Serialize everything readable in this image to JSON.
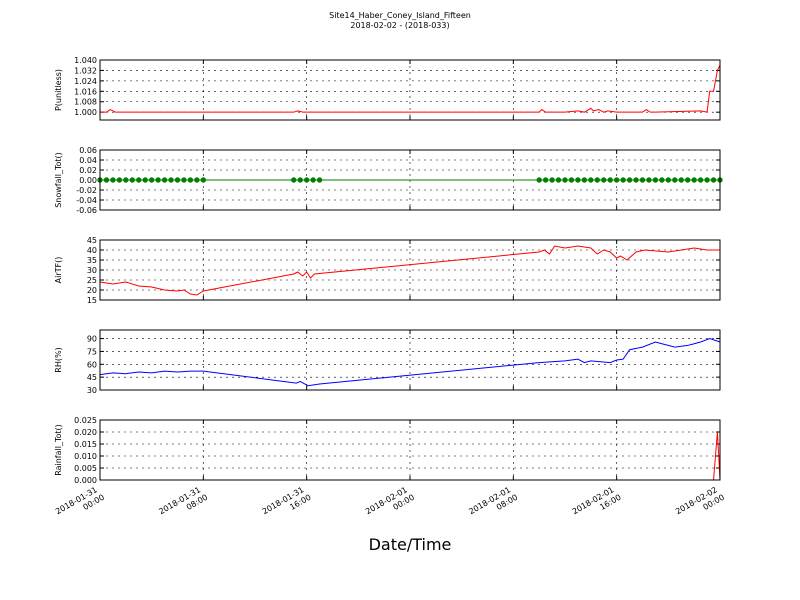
{
  "chart_data": [
    {
      "type": "line",
      "title": "Site14_Haber_Coney_Island_Fifteen",
      "subtitle": "2018-02-02 - (2018-033)",
      "ylabel": "P(unitless)",
      "color": "#ff0000",
      "grid": true,
      "xlim": [
        0,
        48
      ],
      "x": [
        0,
        0.5,
        0.8,
        1.2,
        15,
        15.3,
        15.7,
        16,
        34,
        34.2,
        34.5,
        36,
        37,
        37.5,
        38,
        38.2,
        38.6,
        39,
        39.3,
        40,
        42,
        42.3,
        42.6,
        43,
        46.5,
        47,
        47.2,
        47.5,
        47.8,
        48
      ],
      "values": [
        1.0,
        1.0,
        1.002,
        1.0,
        1.0,
        1.001,
        1.0,
        1.0,
        1.0,
        1.002,
        1.0,
        1.0,
        1.001,
        1.0,
        1.003,
        1.001,
        1.002,
        1.0,
        1.001,
        1.0,
        1.0,
        1.002,
        1.0,
        1.0,
        1.001,
        1.0,
        1.016,
        1.016,
        1.032,
        1.036
      ],
      "ylim": [
        0.994,
        1.04
      ],
      "yticks": [
        {
          "value": 1.0,
          "label": "1.000"
        },
        {
          "value": 1.008,
          "label": "1.008"
        },
        {
          "value": 1.016,
          "label": "1.016"
        },
        {
          "value": 1.024,
          "label": "1.024"
        },
        {
          "value": 1.032,
          "label": "1.032"
        },
        {
          "value": 1.04,
          "label": "1.040"
        }
      ]
    },
    {
      "type": "line",
      "ylabel": "Snowfall_Tot()",
      "color": "#008000",
      "marker": true,
      "grid": true,
      "xlim": [
        0,
        48
      ],
      "x": [
        0,
        0.5,
        1,
        1.5,
        2,
        2.5,
        3,
        3.5,
        4,
        4.5,
        5,
        5.5,
        6,
        6.5,
        7,
        7.5,
        8,
        15,
        15.5,
        16,
        16.5,
        17,
        34,
        34.5,
        35,
        35.5,
        36,
        36.5,
        37,
        37.5,
        38,
        38.5,
        39,
        39.5,
        40,
        40.5,
        41,
        41.5,
        42,
        42.5,
        43,
        43.5,
        44,
        44.5,
        45,
        45.5,
        46,
        46.5,
        47,
        47.5,
        48
      ],
      "values": [
        0,
        0,
        0,
        0,
        0,
        0,
        0,
        0,
        0,
        0,
        0,
        0,
        0,
        0,
        0,
        0,
        0,
        0,
        0,
        0,
        0,
        0,
        0,
        0,
        0,
        0,
        0,
        0,
        0,
        0,
        0,
        0,
        0,
        0,
        0,
        0,
        0,
        0,
        0,
        0,
        0,
        0,
        0,
        0,
        0,
        0,
        0,
        0,
        0,
        0,
        0
      ],
      "ylim": [
        -0.06,
        0.06
      ],
      "yticks": [
        {
          "value": -0.06,
          "label": "-0.06"
        },
        {
          "value": -0.04,
          "label": "-0.04"
        },
        {
          "value": -0.02,
          "label": "-0.02"
        },
        {
          "value": 0,
          "label": "0.00"
        },
        {
          "value": 0.02,
          "label": "0.02"
        },
        {
          "value": 0.04,
          "label": "0.04"
        },
        {
          "value": 0.06,
          "label": "0.06"
        }
      ]
    },
    {
      "type": "line",
      "ylabel": "AirTF()",
      "color": "#ff0000",
      "grid": true,
      "xlim": [
        0,
        48
      ],
      "x": [
        0,
        1,
        2,
        3,
        4,
        5,
        6,
        6.5,
        7,
        7.5,
        8,
        15,
        15.3,
        15.7,
        16,
        16.3,
        16.6,
        34,
        34.4,
        34.8,
        35.2,
        36,
        37,
        38,
        38.5,
        39,
        39.5,
        40,
        40.3,
        40.8,
        41.5,
        42.2,
        44,
        46,
        47,
        48
      ],
      "values": [
        24,
        23,
        24,
        22,
        21.5,
        20,
        19.5,
        20,
        18,
        17.5,
        19.5,
        28,
        29,
        27,
        29,
        26,
        28,
        39,
        40,
        38,
        42,
        41,
        42,
        41,
        38,
        40,
        39,
        36,
        37,
        35,
        39,
        40,
        39,
        41,
        40,
        40
      ],
      "ylim": [
        15,
        45
      ],
      "yticks": [
        15,
        20,
        25,
        30,
        35,
        40,
        45
      ]
    },
    {
      "type": "line",
      "ylabel": "RH(%)",
      "color": "#0000ff",
      "grid": true,
      "xlim": [
        0,
        48
      ],
      "x": [
        0,
        1,
        2,
        3,
        4,
        5,
        6,
        7,
        8,
        15.2,
        15.5,
        16.1,
        17,
        34,
        35,
        36,
        37,
        37.5,
        38,
        39.5,
        40,
        40.5,
        41,
        42,
        43,
        43.5,
        44.5,
        45.5,
        46,
        46.5,
        47.2,
        48
      ],
      "values": [
        48,
        50,
        49,
        51,
        50,
        52,
        51,
        52,
        52,
        38,
        40,
        35,
        37,
        62,
        63,
        64,
        66,
        62,
        64,
        62,
        65,
        66,
        77,
        80,
        86,
        84,
        80,
        82,
        84,
        86,
        90,
        86
      ],
      "ylim": [
        30,
        100
      ],
      "yticks": [
        30,
        45,
        60,
        75,
        90
      ]
    },
    {
      "type": "line",
      "ylabel": "Rainfall_Tot()",
      "xlabel": "Date/Time",
      "color": "#ff0000",
      "grid": true,
      "xlim": [
        0,
        48
      ],
      "x": [
        0,
        8,
        16,
        24,
        32,
        40,
        47.5,
        47.8,
        48
      ],
      "values": [
        0,
        0,
        0,
        0,
        0,
        0,
        0,
        0.02,
        0
      ],
      "ylim": [
        0,
        0.025
      ],
      "yticks": [
        {
          "value": 0,
          "label": "0.000"
        },
        {
          "value": 0.005,
          "label": "0.005"
        },
        {
          "value": 0.01,
          "label": "0.010"
        },
        {
          "value": 0.015,
          "label": "0.015"
        },
        {
          "value": 0.02,
          "label": "0.020"
        },
        {
          "value": 0.025,
          "label": "0.025"
        }
      ],
      "xticks": [
        {
          "value": 0,
          "label": "2018-01-31 00:00"
        },
        {
          "value": 8,
          "label": "2018-01-31 08:00"
        },
        {
          "value": 16,
          "label": "2018-01-31 16:00"
        },
        {
          "value": 24,
          "label": "2018-02-01 00:00"
        },
        {
          "value": 32,
          "label": "2018-02-01 08:00"
        },
        {
          "value": 40,
          "label": "2018-02-01 16:00"
        },
        {
          "value": 48,
          "label": "2018-02-02 00:00"
        }
      ]
    }
  ]
}
